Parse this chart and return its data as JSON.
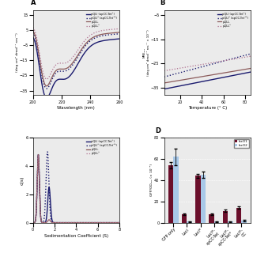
{
  "panel_A": {
    "xlabel": "Wavelength (nm)",
    "xlim": [
      200,
      260
    ],
    "ylim": [
      -38,
      18
    ],
    "yticks": [
      -35,
      -25,
      -15,
      -5,
      5,
      15
    ],
    "xticks": [
      200,
      220,
      240,
      260
    ],
    "lines": [
      {
        "label": "pQLI (apCC-Tet⁺)",
        "color": "#1a1a6e",
        "linestyle": "solid",
        "lw": 1.0
      },
      {
        "label": "pQLI³ (apCC-Tet⁺³)",
        "color": "#1a1a6e",
        "linestyle": "dotted",
        "lw": 1.0
      },
      {
        "label": "pQLL",
        "color": "#8b5a5a",
        "linestyle": "solid",
        "lw": 0.9
      },
      {
        "label": "pQLL³",
        "color": "#b07090",
        "linestyle": "dotted",
        "lw": 0.9
      }
    ]
  },
  "panel_B": {
    "xlabel": "Temperature (° C)",
    "xlim": [
      5,
      85
    ],
    "ylim": [
      -38,
      -3
    ],
    "yticks": [
      -35,
      -25,
      -15,
      -5
    ],
    "xticks": [
      20,
      40,
      60,
      80
    ],
    "lines": [
      {
        "label": "pQLI (apCC-Tet⁺)",
        "color": "#1a1a6e",
        "linestyle": "solid",
        "lw": 1.0
      },
      {
        "label": "pQLI³ (apCC-Tet⁺³)",
        "color": "#1a1a6e",
        "linestyle": "dotted",
        "lw": 1.0
      },
      {
        "label": "pQLL",
        "color": "#8b5a5a",
        "linestyle": "solid",
        "lw": 0.9
      },
      {
        "label": "pQLL³",
        "color": "#b07090",
        "linestyle": "dotted",
        "lw": 0.9
      }
    ]
  },
  "panel_C": {
    "xlabel": "Sedimentation Coefficient (S)",
    "ylabel": "c(s)",
    "xlim": [
      0,
      8
    ],
    "ylim": [
      0,
      6
    ],
    "yticks": [
      0,
      2,
      4,
      6
    ],
    "xticks": [
      0,
      2,
      4,
      6,
      8
    ],
    "lines": [
      {
        "label": "pQLI (apCC-Tet⁺)",
        "color": "#1a1a6e",
        "linestyle": "solid",
        "lw": 1.0
      },
      {
        "label": "pQLI³ (apCC-Tet⁺³)",
        "color": "#1a1a6e",
        "linestyle": "dotted",
        "lw": 1.0
      },
      {
        "label": "pQLL",
        "color": "#8b5a5a",
        "linestyle": "solid",
        "lw": 0.9
      },
      {
        "label": "pQLL³",
        "color": "#b07090",
        "linestyle": "dotted",
        "lw": 0.9
      }
    ]
  },
  "panel_D": {
    "ylabel": "GFP/OD₆₀₀ (× 10⁻²)",
    "ylim": [
      0,
      80
    ],
    "yticks": [
      0,
      20,
      40,
      60,
      80
    ],
    "categories": [
      "GFP only",
      "LacI",
      "LacI*",
      "LacI*-apCC-Tet",
      "LacI*-apCC-Tet*",
      "LacI*-CC"
    ],
    "lacO1_values": [
      54,
      8,
      44,
      8,
      11,
      14
    ],
    "lacO2_values": [
      62,
      1,
      45,
      1,
      1,
      2
    ],
    "lacO1_errors": [
      3,
      1,
      2,
      1,
      1,
      1
    ],
    "lacO2_errors": [
      8,
      0.3,
      3,
      0.3,
      0.3,
      0.5
    ],
    "lacO1_color": "#6b0f2b",
    "lacO2_color": "#a8c8e8",
    "legend_labels": [
      "lacO1",
      "lacO2"
    ]
  },
  "bg_color": "#ebebeb"
}
